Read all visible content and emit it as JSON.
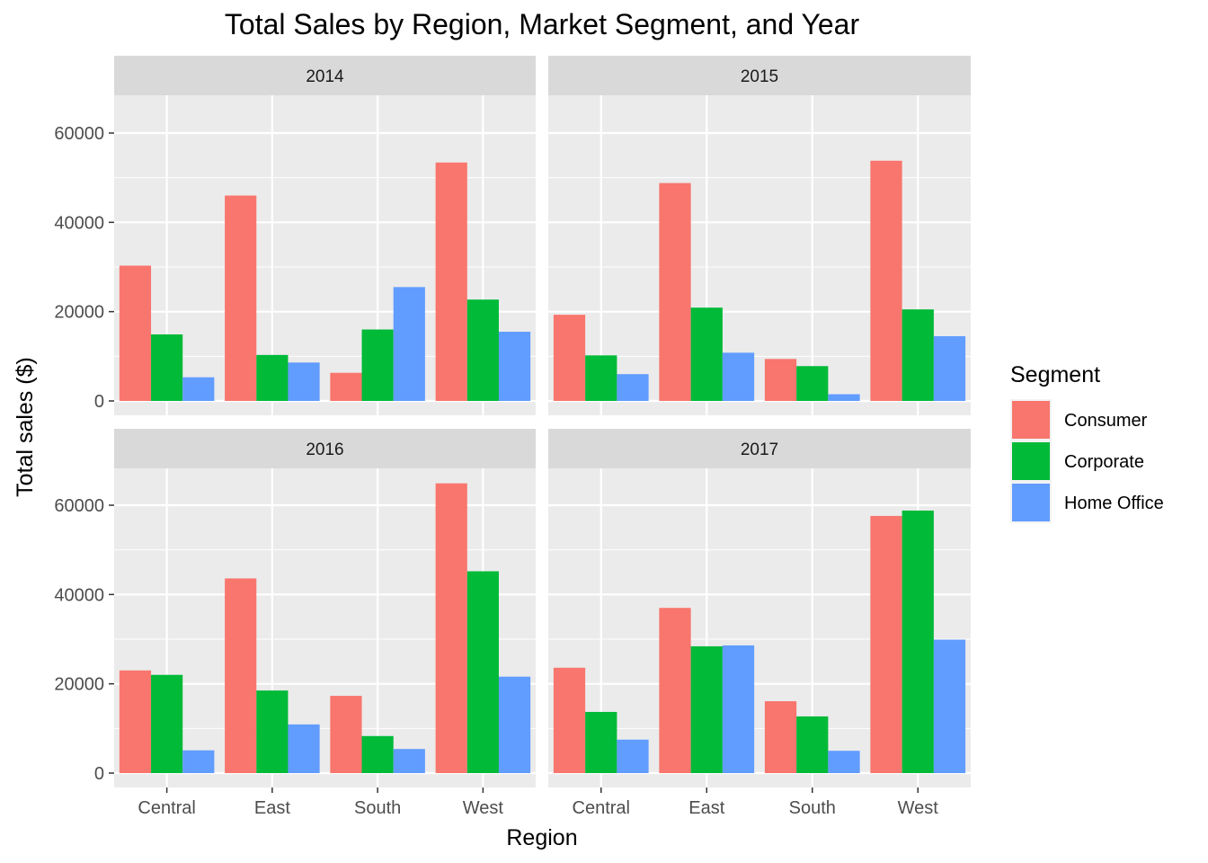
{
  "chart_data": {
    "type": "bar",
    "title": "Total Sales by Region, Market Segment, and Year",
    "xlabel": "Region",
    "ylabel": "Total sales ($)",
    "categories": [
      "Central",
      "East",
      "South",
      "West"
    ],
    "yticks": [
      "0",
      "20000",
      "40000",
      "60000"
    ],
    "ylim": [
      0,
      70000
    ],
    "grid": true,
    "legend": {
      "title": "Segment",
      "position": "right",
      "entries": [
        "Consumer",
        "Corporate",
        "Home Office"
      ]
    },
    "colors": {
      "Consumer": "#F8766D",
      "Corporate": "#00BA38",
      "Home Office": "#619CFF"
    },
    "facets": [
      {
        "label": "2014",
        "series": [
          {
            "name": "Consumer",
            "values": [
              30300,
              46000,
              6300,
              53400
            ]
          },
          {
            "name": "Corporate",
            "values": [
              14900,
              10300,
              16000,
              22700
            ]
          },
          {
            "name": "Home Office",
            "values": [
              5300,
              8600,
              25500,
              15500
            ]
          }
        ]
      },
      {
        "label": "2015",
        "series": [
          {
            "name": "Consumer",
            "values": [
              19300,
              48800,
              9400,
              53800
            ]
          },
          {
            "name": "Corporate",
            "values": [
              10200,
              20900,
              7800,
              20500
            ]
          },
          {
            "name": "Home Office",
            "values": [
              6000,
              10800,
              1500,
              14500
            ]
          }
        ]
      },
      {
        "label": "2016",
        "series": [
          {
            "name": "Consumer",
            "values": [
              23000,
              43600,
              17300,
              64900
            ]
          },
          {
            "name": "Corporate",
            "values": [
              22000,
              18500,
              8300,
              45200
            ]
          },
          {
            "name": "Home Office",
            "values": [
              5100,
              10900,
              5400,
              21600
            ]
          }
        ]
      },
      {
        "label": "2017",
        "series": [
          {
            "name": "Consumer",
            "values": [
              23600,
              37000,
              16100,
              57600
            ]
          },
          {
            "name": "Corporate",
            "values": [
              13700,
              28400,
              12700,
              58800
            ]
          },
          {
            "name": "Home Office",
            "values": [
              7500,
              28600,
              5000,
              29900
            ]
          }
        ]
      }
    ]
  }
}
